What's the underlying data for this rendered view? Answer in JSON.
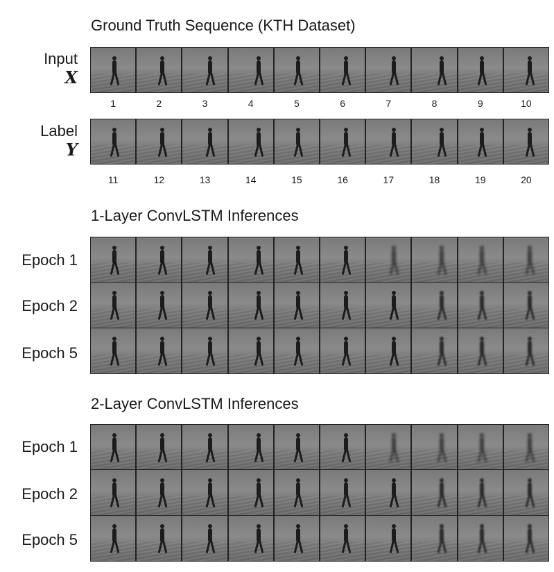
{
  "ground_truth": {
    "title": "Ground Truth Sequence (KTH Dataset)",
    "input_label": "Input",
    "input_symbol": "X",
    "label_label": "Label",
    "label_symbol": "Y",
    "input_frames": [
      "1",
      "2",
      "3",
      "4",
      "5",
      "6",
      "7",
      "8",
      "9",
      "10"
    ],
    "label_frames": [
      "11",
      "12",
      "13",
      "14",
      "15",
      "16",
      "17",
      "18",
      "19",
      "20"
    ]
  },
  "one_layer": {
    "title": "1-Layer ConvLSTM Inferences",
    "rows": [
      "Epoch 1",
      "Epoch 2",
      "Epoch 5"
    ]
  },
  "two_layer": {
    "title": "2-Layer ConvLSTM Inferences",
    "rows": [
      "Epoch 1",
      "Epoch 2",
      "Epoch 5"
    ]
  }
}
